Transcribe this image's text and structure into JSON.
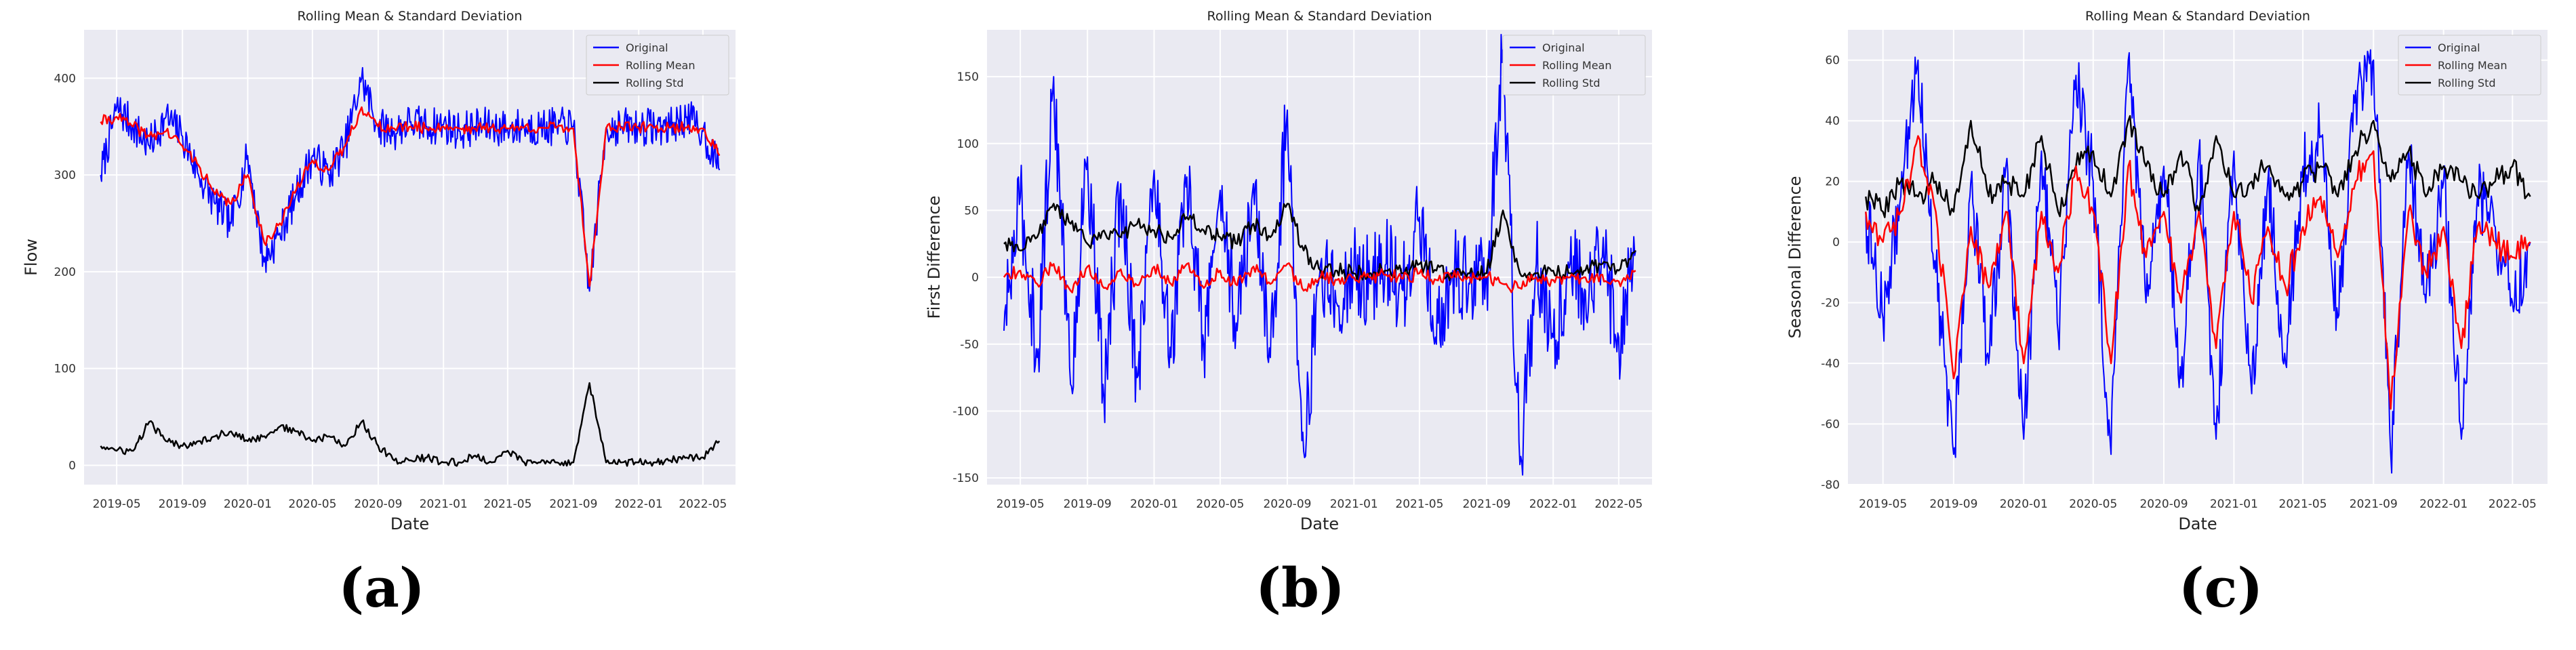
{
  "figure": {
    "panel_labels": [
      "(a)",
      "(b)",
      "(c)"
    ]
  },
  "chart_data": [
    {
      "type": "line",
      "title": "Rolling Mean & Standard Deviation",
      "xlabel": "Date",
      "ylabel": "Flow",
      "grid": true,
      "legend_placement": "top-right",
      "xlim": [
        "2019-03-01",
        "2022-07-01"
      ],
      "ylim": [
        -20,
        450
      ],
      "x_ticks": [
        "2019-05",
        "2019-09",
        "2020-01",
        "2020-05",
        "2020-09",
        "2021-01",
        "2021-05",
        "2021-09",
        "2022-01",
        "2022-05"
      ],
      "y_ticks": [
        0,
        100,
        200,
        300,
        400
      ],
      "colors": {
        "Original": "#0000ff",
        "Rolling Mean": "#ff0000",
        "Rolling Std": "#000000"
      },
      "series": [
        {
          "name": "Original",
          "x": [
            "2019-04-01",
            "2019-05-01",
            "2019-06-01",
            "2019-07-01",
            "2019-08-01",
            "2019-09-01",
            "2019-10-01",
            "2019-11-01",
            "2019-12-01",
            "2020-01-01",
            "2020-02-01",
            "2020-03-01",
            "2020-04-01",
            "2020-05-01",
            "2020-06-01",
            "2020-07-01",
            "2020-08-01",
            "2020-09-01",
            "2020-10-01",
            "2020-11-01",
            "2020-12-01",
            "2021-01-01",
            "2021-02-01",
            "2021-03-01",
            "2021-04-01",
            "2021-05-01",
            "2021-06-01",
            "2021-07-01",
            "2021-08-01",
            "2021-09-01",
            "2021-10-01",
            "2021-11-01",
            "2021-12-01",
            "2022-01-01",
            "2022-02-01",
            "2022-03-01",
            "2022-04-01",
            "2022-05-01",
            "2022-06-01"
          ],
          "values": [
            300,
            370,
            350,
            330,
            360,
            340,
            300,
            270,
            250,
            320,
            210,
            240,
            280,
            320,
            300,
            330,
            400,
            350,
            345,
            355,
            350,
            352,
            345,
            350,
            350,
            348,
            350,
            349,
            350,
            350,
            180,
            349,
            350,
            350,
            350,
            350,
            360,
            345,
            305
          ]
        },
        {
          "name": "Rolling Mean",
          "x": [
            "2019-04-01",
            "2019-05-01",
            "2019-06-01",
            "2019-07-01",
            "2019-08-01",
            "2019-09-01",
            "2019-10-01",
            "2019-11-01",
            "2019-12-01",
            "2020-01-01",
            "2020-02-01",
            "2020-03-01",
            "2020-04-01",
            "2020-05-01",
            "2020-06-01",
            "2020-07-01",
            "2020-08-01",
            "2020-09-01",
            "2020-10-01",
            "2020-11-01",
            "2020-12-01",
            "2021-01-01",
            "2021-02-01",
            "2021-03-01",
            "2021-04-01",
            "2021-05-01",
            "2021-06-01",
            "2021-07-01",
            "2021-08-01",
            "2021-09-01",
            "2021-10-01",
            "2021-11-01",
            "2021-12-01",
            "2022-01-01",
            "2022-02-01",
            "2022-03-01",
            "2022-04-01",
            "2022-05-01",
            "2022-06-01"
          ],
          "values": [
            355,
            360,
            350,
            340,
            345,
            330,
            310,
            280,
            270,
            300,
            230,
            250,
            285,
            315,
            305,
            330,
            370,
            350,
            348,
            350,
            348,
            350,
            348,
            348,
            349,
            348,
            349,
            349,
            349,
            348,
            185,
            348,
            349,
            349,
            349,
            349,
            349,
            348,
            320
          ]
        },
        {
          "name": "Rolling Std",
          "x": [
            "2019-04-01",
            "2019-05-01",
            "2019-06-01",
            "2019-07-01",
            "2019-08-01",
            "2019-09-01",
            "2019-10-01",
            "2019-11-01",
            "2019-12-01",
            "2020-01-01",
            "2020-02-01",
            "2020-03-01",
            "2020-04-01",
            "2020-05-01",
            "2020-06-01",
            "2020-07-01",
            "2020-08-01",
            "2020-09-01",
            "2020-10-01",
            "2020-11-01",
            "2020-12-01",
            "2021-01-01",
            "2021-02-01",
            "2021-03-01",
            "2021-04-01",
            "2021-05-01",
            "2021-06-01",
            "2021-07-01",
            "2021-08-01",
            "2021-09-01",
            "2021-10-01",
            "2021-11-01",
            "2021-12-01",
            "2022-01-01",
            "2022-02-01",
            "2022-03-01",
            "2022-04-01",
            "2022-05-01",
            "2022-06-01"
          ],
          "values": [
            20,
            15,
            15,
            45,
            25,
            20,
            25,
            30,
            35,
            25,
            30,
            40,
            35,
            25,
            30,
            20,
            45,
            20,
            5,
            5,
            8,
            3,
            3,
            10,
            3,
            15,
            3,
            3,
            3,
            3,
            85,
            3,
            3,
            3,
            3,
            5,
            8,
            8,
            25
          ]
        }
      ]
    },
    {
      "type": "line",
      "title": "Rolling Mean & Standard Deviation",
      "xlabel": "Date",
      "ylabel": "First Difference",
      "grid": true,
      "legend_placement": "top-right",
      "xlim": [
        "2019-03-01",
        "2022-07-01"
      ],
      "ylim": [
        -155,
        185
      ],
      "x_ticks": [
        "2019-05",
        "2019-09",
        "2020-01",
        "2020-05",
        "2020-09",
        "2021-01",
        "2021-05",
        "2021-09",
        "2022-01",
        "2022-05"
      ],
      "y_ticks": [
        -150,
        -100,
        -50,
        0,
        50,
        100,
        150
      ],
      "colors": {
        "Original": "#0000ff",
        "Rolling Mean": "#ff0000",
        "Rolling Std": "#000000"
      },
      "series": [
        {
          "name": "Original",
          "x": [
            "2019-04-01",
            "2019-05-01",
            "2019-06-01",
            "2019-07-01",
            "2019-08-01",
            "2019-09-01",
            "2019-10-01",
            "2019-11-01",
            "2019-12-01",
            "2020-01-01",
            "2020-02-01",
            "2020-03-01",
            "2020-04-01",
            "2020-05-01",
            "2020-06-01",
            "2020-07-01",
            "2020-08-01",
            "2020-09-01",
            "2020-10-01",
            "2020-11-01",
            "2020-12-01",
            "2021-01-01",
            "2021-02-01",
            "2021-03-01",
            "2021-04-01",
            "2021-05-01",
            "2021-06-01",
            "2021-07-01",
            "2021-08-01",
            "2021-09-01",
            "2021-10-01",
            "2021-11-01",
            "2021-12-01",
            "2022-01-01",
            "2022-02-01",
            "2022-03-01",
            "2022-04-01",
            "2022-05-01",
            "2022-06-01"
          ],
          "values": [
            -40,
            60,
            -60,
            150,
            -80,
            90,
            -90,
            70,
            -75,
            80,
            -60,
            75,
            -50,
            65,
            -40,
            70,
            -60,
            125,
            -130,
            10,
            -20,
            5,
            -5,
            10,
            -10,
            45,
            -50,
            5,
            -5,
            0,
            170,
            -140,
            10,
            -45,
            10,
            -10,
            15,
            -45,
            20
          ]
        },
        {
          "name": "Rolling Mean",
          "x": [
            "2019-04-01",
            "2019-05-01",
            "2019-06-01",
            "2019-07-01",
            "2019-08-01",
            "2019-09-01",
            "2019-10-01",
            "2019-11-01",
            "2019-12-01",
            "2020-01-01",
            "2020-02-01",
            "2020-03-01",
            "2020-04-01",
            "2020-05-01",
            "2020-06-01",
            "2020-07-01",
            "2020-08-01",
            "2020-09-01",
            "2020-10-01",
            "2020-11-01",
            "2020-12-01",
            "2021-01-01",
            "2021-02-01",
            "2021-03-01",
            "2021-04-01",
            "2021-05-01",
            "2021-06-01",
            "2021-07-01",
            "2021-08-01",
            "2021-09-01",
            "2021-10-01",
            "2021-11-01",
            "2021-12-01",
            "2022-01-01",
            "2022-02-01",
            "2022-03-01",
            "2022-04-01",
            "2022-05-01",
            "2022-06-01"
          ],
          "values": [
            0,
            5,
            -5,
            10,
            -10,
            8,
            -8,
            6,
            -6,
            8,
            -5,
            10,
            -8,
            5,
            -6,
            8,
            -5,
            10,
            -10,
            0,
            -2,
            0,
            0,
            2,
            -1,
            3,
            -2,
            0,
            0,
            0,
            -5,
            -8,
            0,
            -2,
            0,
            0,
            2,
            -3,
            5
          ]
        },
        {
          "name": "Rolling Std",
          "x": [
            "2019-04-01",
            "2019-05-01",
            "2019-06-01",
            "2019-07-01",
            "2019-08-01",
            "2019-09-01",
            "2019-10-01",
            "2019-11-01",
            "2019-12-01",
            "2020-01-01",
            "2020-02-01",
            "2020-03-01",
            "2020-04-01",
            "2020-05-01",
            "2020-06-01",
            "2020-07-01",
            "2020-08-01",
            "2020-09-01",
            "2020-10-01",
            "2020-11-01",
            "2020-12-01",
            "2021-01-01",
            "2021-02-01",
            "2021-03-01",
            "2021-04-01",
            "2021-05-01",
            "2021-06-01",
            "2021-07-01",
            "2021-08-01",
            "2021-09-01",
            "2021-10-01",
            "2021-11-01",
            "2021-12-01",
            "2022-01-01",
            "2022-02-01",
            "2022-03-01",
            "2022-04-01",
            "2022-05-01",
            "2022-06-01"
          ],
          "values": [
            25,
            20,
            30,
            55,
            40,
            25,
            35,
            30,
            40,
            35,
            30,
            45,
            35,
            30,
            25,
            40,
            30,
            55,
            20,
            5,
            5,
            3,
            3,
            5,
            3,
            10,
            5,
            3,
            3,
            3,
            50,
            3,
            3,
            5,
            3,
            5,
            10,
            5,
            20
          ]
        }
      ]
    },
    {
      "type": "line",
      "title": "Rolling Mean & Standard Deviation",
      "xlabel": "Date",
      "ylabel": "Seasonal Difference",
      "grid": true,
      "legend_placement": "top-right",
      "xlim": [
        "2019-03-01",
        "2022-07-01"
      ],
      "ylim": [
        -80,
        70
      ],
      "x_ticks": [
        "2019-05",
        "2019-09",
        "2020-01",
        "2020-05",
        "2020-09",
        "2021-01",
        "2021-05",
        "2021-09",
        "2022-01",
        "2022-05"
      ],
      "y_ticks": [
        -80,
        -60,
        -40,
        -20,
        0,
        20,
        40,
        60
      ],
      "colors": {
        "Original": "#0000ff",
        "Rolling Mean": "#ff0000",
        "Rolling Std": "#000000"
      },
      "series": [
        {
          "name": "Original",
          "x": [
            "2019-04-01",
            "2019-05-01",
            "2019-06-01",
            "2019-07-01",
            "2019-08-01",
            "2019-09-01",
            "2019-10-01",
            "2019-11-01",
            "2019-12-01",
            "2020-01-01",
            "2020-02-01",
            "2020-03-01",
            "2020-04-01",
            "2020-05-01",
            "2020-06-01",
            "2020-07-01",
            "2020-08-01",
            "2020-09-01",
            "2020-10-01",
            "2020-11-01",
            "2020-12-01",
            "2021-01-01",
            "2021-02-01",
            "2021-03-01",
            "2021-04-01",
            "2021-05-01",
            "2021-06-01",
            "2021-07-01",
            "2021-08-01",
            "2021-09-01",
            "2021-10-01",
            "2021-11-01",
            "2021-12-01",
            "2022-01-01",
            "2022-02-01",
            "2022-03-01",
            "2022-04-01",
            "2022-05-01",
            "2022-06-01"
          ],
          "values": [
            10,
            -25,
            15,
            60,
            -10,
            -70,
            20,
            -40,
            25,
            -65,
            30,
            -30,
            55,
            20,
            -70,
            60,
            -20,
            25,
            -45,
            30,
            -65,
            30,
            -50,
            20,
            -40,
            25,
            35,
            -25,
            50,
            60,
            -70,
            30,
            -20,
            20,
            -65,
            15,
            5,
            -20,
            0
          ]
        },
        {
          "name": "Rolling Mean",
          "x": [
            "2019-04-01",
            "2019-05-01",
            "2019-06-01",
            "2019-07-01",
            "2019-08-01",
            "2019-09-01",
            "2019-10-01",
            "2019-11-01",
            "2019-12-01",
            "2020-01-01",
            "2020-02-01",
            "2020-03-01",
            "2020-04-01",
            "2020-05-01",
            "2020-06-01",
            "2020-07-01",
            "2020-08-01",
            "2020-09-01",
            "2020-10-01",
            "2020-11-01",
            "2020-12-01",
            "2021-01-01",
            "2021-02-01",
            "2021-03-01",
            "2021-04-01",
            "2021-05-01",
            "2021-06-01",
            "2021-07-01",
            "2021-08-01",
            "2021-09-01",
            "2021-10-01",
            "2021-11-01",
            "2021-12-01",
            "2022-01-01",
            "2022-02-01",
            "2022-03-01",
            "2022-04-01",
            "2022-05-01",
            "2022-06-01"
          ],
          "values": [
            10,
            0,
            10,
            35,
            10,
            -45,
            5,
            -15,
            10,
            -40,
            10,
            -10,
            25,
            10,
            -40,
            25,
            -5,
            10,
            -20,
            10,
            -35,
            10,
            -20,
            5,
            -15,
            5,
            15,
            -5,
            20,
            30,
            -55,
            10,
            -10,
            5,
            -35,
            5,
            0,
            -5,
            0
          ]
        },
        {
          "name": "Rolling Std",
          "x": [
            "2019-04-01",
            "2019-05-01",
            "2019-06-01",
            "2019-07-01",
            "2019-08-01",
            "2019-09-01",
            "2019-10-01",
            "2019-11-01",
            "2019-12-01",
            "2020-01-01",
            "2020-02-01",
            "2020-03-01",
            "2020-04-01",
            "2020-05-01",
            "2020-06-01",
            "2020-07-01",
            "2020-08-01",
            "2020-09-01",
            "2020-10-01",
            "2020-11-01",
            "2020-12-01",
            "2021-01-01",
            "2021-02-01",
            "2021-03-01",
            "2021-04-01",
            "2021-05-01",
            "2021-06-01",
            "2021-07-01",
            "2021-08-01",
            "2021-09-01",
            "2021-10-01",
            "2021-11-01",
            "2021-12-01",
            "2022-01-01",
            "2022-02-01",
            "2022-03-01",
            "2022-04-01",
            "2022-05-01",
            "2022-06-01"
          ],
          "values": [
            15,
            10,
            20,
            15,
            20,
            10,
            40,
            15,
            20,
            15,
            35,
            10,
            25,
            30,
            15,
            40,
            25,
            15,
            30,
            10,
            35,
            15,
            20,
            25,
            15,
            20,
            25,
            15,
            30,
            40,
            20,
            30,
            15,
            25,
            20,
            15,
            20,
            25,
            15
          ]
        }
      ]
    }
  ]
}
